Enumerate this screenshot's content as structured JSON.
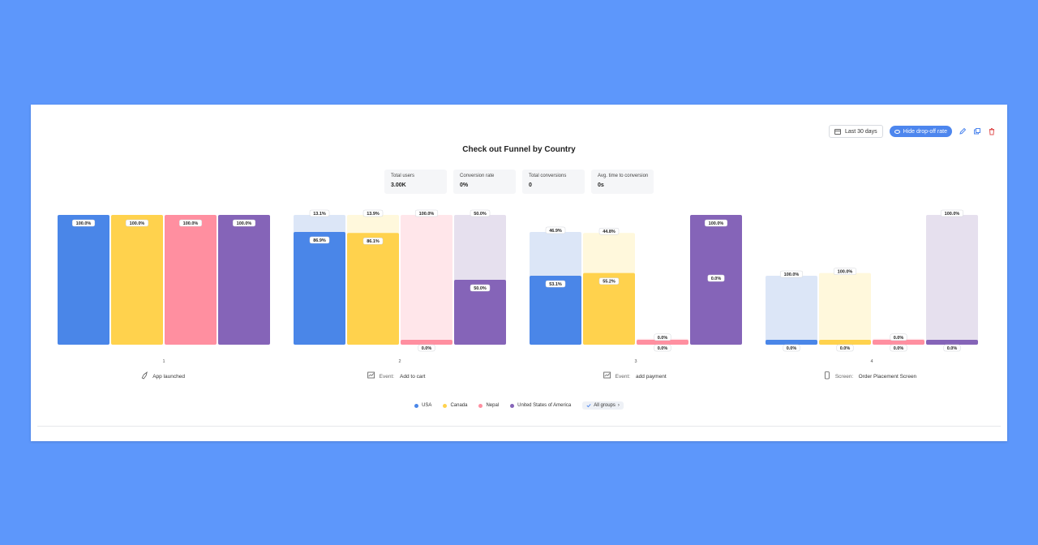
{
  "toolbar": {
    "date_label": "Last 30 days",
    "hide_label": "Hide drop-off rate",
    "accent": "#4d86ee"
  },
  "stats": [
    {
      "label": "Total users",
      "value": "3.00K"
    },
    {
      "label": "Conversion rate",
      "value": "0%"
    },
    {
      "label": "Total conversions",
      "value": "0"
    },
    {
      "label": "Avg. time to conversion",
      "value": "0s"
    }
  ],
  "legend": {
    "all_groups_label": "All groups"
  },
  "chart_data": {
    "type": "bar",
    "title": "Check out Funnel by Country",
    "xlabel": "",
    "ylabel": "",
    "ylim": [
      0,
      100
    ],
    "grid": false,
    "legend_position": "bottom",
    "steps": [
      {
        "number": "1",
        "prefix": "",
        "name": "App launched",
        "icon": "rocket-icon"
      },
      {
        "number": "2",
        "prefix": "Event:",
        "name": "Add to cart",
        "icon": "chart-line-icon"
      },
      {
        "number": "3",
        "prefix": "Event:",
        "name": "add payment",
        "icon": "chart-line-icon"
      },
      {
        "number": "4",
        "prefix": "Screen:",
        "name": "Order Placement Screen",
        "icon": "phone-icon"
      }
    ],
    "series": [
      {
        "name": "USA",
        "color": "#4a86e8",
        "light": "#dce6f7",
        "values": [
          100,
          86.9,
          53.1,
          0
        ],
        "conversion_labels": [
          "100.0%",
          "86.9%",
          "53.1%",
          "0.0%"
        ],
        "dropoff_labels": [
          null,
          "13.1%",
          "46.9%",
          "100.0%"
        ]
      },
      {
        "name": "Canada",
        "color": "#ffd24d",
        "light": "#fff8dc",
        "values": [
          100,
          86.1,
          55.2,
          0
        ],
        "conversion_labels": [
          "100.0%",
          "86.1%",
          "55.2%",
          "0.0%"
        ],
        "dropoff_labels": [
          null,
          "13.9%",
          "44.8%",
          "100.0%"
        ]
      },
      {
        "name": "Nepal",
        "color": "#ff8fa0",
        "light": "#ffe6ea",
        "values": [
          100,
          0,
          0,
          0
        ],
        "conversion_labels": [
          "100.0%",
          "0.0%",
          "0.0%",
          "0.0%"
        ],
        "dropoff_labels": [
          null,
          "100.0%",
          "0.0%",
          "0.0%"
        ]
      },
      {
        "name": "United States of America",
        "color": "#8564b8",
        "light": "#e6e0ee",
        "values": [
          100,
          50,
          100,
          0
        ],
        "conversion_labels": [
          "100.0%",
          "50.0%",
          "100.0%",
          "0.0%"
        ],
        "dropoff_labels": [
          null,
          "50.0%",
          "0.0%",
          "100.0%"
        ]
      }
    ]
  }
}
